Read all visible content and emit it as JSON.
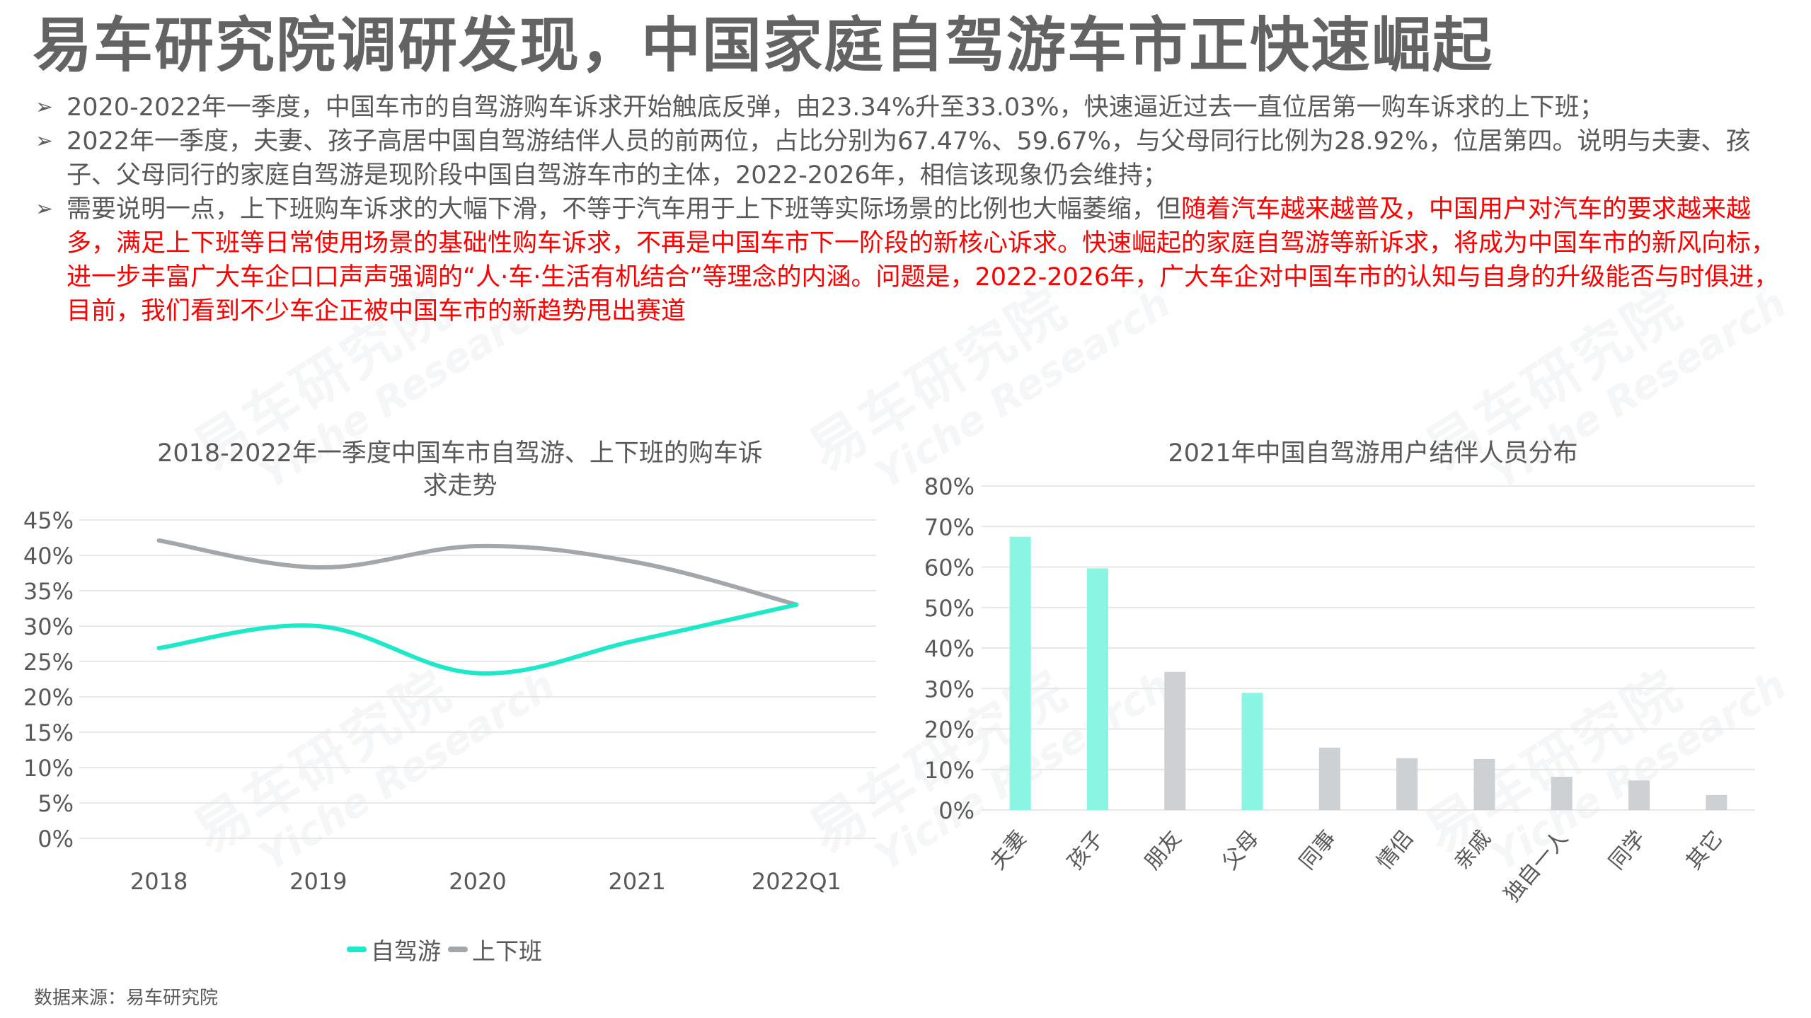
{
  "title": "易车研究院调研发现，中国家庭自驾游车市正快速崛起",
  "bullets": [
    {
      "marker": "➢",
      "segments": [
        {
          "text": "2020-2022年一季度，中国车市的自驾游购车诉求开始触底反弹，由23.34%升至33.03%，快速逼近过去一直位居第一购车诉求的上下班；",
          "highlight": false
        }
      ]
    },
    {
      "marker": "➢",
      "segments": [
        {
          "text": "2022年一季度，夫妻、孩子高居中国自驾游结伴人员的前两位，占比分别为67.47%、59.67%，与父母同行比例为28.92%，位居第四。说明与夫妻、孩子、父母同行的家庭自驾游是现阶段中国自驾游车市的主体，2022-2026年，相信该现象仍会维持；",
          "highlight": false
        }
      ]
    },
    {
      "marker": "➢",
      "segments": [
        {
          "text": "需要说明一点，上下班购车诉求的大幅下滑，不等于汽车用于上下班等实际场景的比例也大幅萎缩，但",
          "highlight": false
        },
        {
          "text": "随着汽车越来越普及，中国用户对汽车的要求越来越多，满足上下班等日常使用场景的基础性购车诉求，不再是中国车市下一阶段的新核心诉求。快速崛起的家庭自驾游等新诉求，将成为中国车市的新风向标，进一步丰富广大车企口口声声强调的“人·车·生活有机结合”等理念的内涵。问题是，2022-2026年，广大车企对中国车市的认知与自身的升级能否与时俱进，目前，我们看到不少车企正被中国车市的新趋势甩出赛道",
          "highlight": true
        }
      ]
    }
  ],
  "watermark": {
    "cn": "易车研究院",
    "en": "Yiche Research"
  },
  "colors": {
    "accent": "#1de9c8",
    "accent_bar": "#8af5e3",
    "grey_line": "#a3a6ab",
    "grey_bar": "#ced1d4",
    "text": "#595959",
    "highlight": "#ff0000",
    "grid": "#e7e7e7"
  },
  "chart_data": [
    {
      "type": "line",
      "title": "2018-2022年一季度中国车市自驾游、上下班的购车诉求走势",
      "title_lines": [
        "2018-2022年一季度中国车市自驾游、上下班的购车诉",
        "求走势"
      ],
      "categories": [
        "2018",
        "2019",
        "2020",
        "2021",
        "2022Q1"
      ],
      "series": [
        {
          "name": "自驾游",
          "color": "#1de9c8",
          "values": [
            26.9,
            30.0,
            23.34,
            28.0,
            33.03
          ]
        },
        {
          "name": "上下班",
          "color": "#a3a6ab",
          "values": [
            42.1,
            38.3,
            41.3,
            39.0,
            33.03
          ]
        }
      ],
      "yticks": [
        "0%",
        "5%",
        "10%",
        "15%",
        "20%",
        "25%",
        "30%",
        "35%",
        "40%",
        "45%"
      ],
      "ylim": [
        0,
        45
      ],
      "xlabel": "",
      "ylabel": "",
      "grid": true,
      "smooth": true,
      "legend_position": "bottom"
    },
    {
      "type": "bar",
      "title": "2021年中国自驾游用户结伴人员分布",
      "categories": [
        "夫妻",
        "孩子",
        "朋友",
        "父母",
        "同事",
        "情侣",
        "亲戚",
        "独自一人",
        "同学",
        "其它"
      ],
      "values": [
        67.47,
        59.67,
        34.1,
        28.92,
        15.4,
        12.8,
        12.6,
        8.2,
        7.3,
        3.7
      ],
      "highlighted": [
        true,
        true,
        false,
        true,
        false,
        false,
        false,
        false,
        false,
        false
      ],
      "yticks": [
        "0%",
        "10%",
        "20%",
        "30%",
        "40%",
        "50%",
        "60%",
        "70%",
        "80%"
      ],
      "ylim": [
        0,
        80
      ],
      "xlabel": "",
      "ylabel": "",
      "grid": true,
      "xlabel_rotation": -45
    }
  ],
  "legend": {
    "items": [
      {
        "label": "自驾游",
        "color": "#1de9c8"
      },
      {
        "label": "上下班",
        "color": "#a3a6ab"
      }
    ]
  },
  "source": "数据来源：易车研究院"
}
